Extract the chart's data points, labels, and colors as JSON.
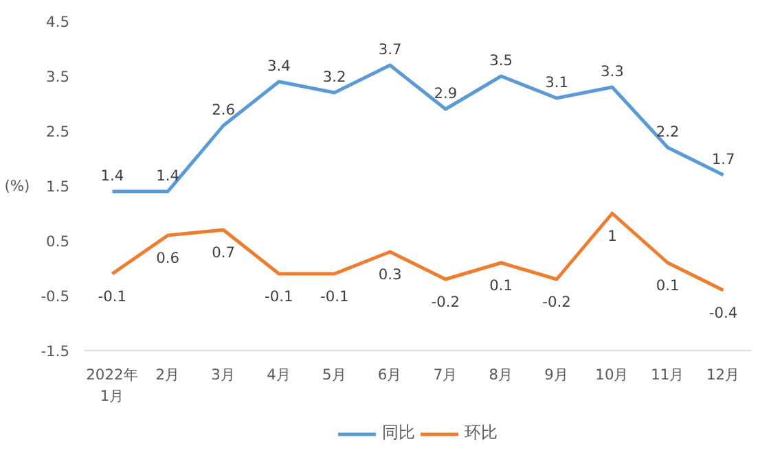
{
  "chart_data": {
    "type": "line",
    "categories": [
      "2022年\n1月",
      "2月",
      "3月",
      "4月",
      "5月",
      "6月",
      "7月",
      "8月",
      "9月",
      "10月",
      "11月",
      "12月"
    ],
    "series": [
      {
        "name": "同比",
        "color": "#5b9bd5",
        "values": [
          1.4,
          1.4,
          2.6,
          3.4,
          3.2,
          3.7,
          2.9,
          3.5,
          3.1,
          3.3,
          2.2,
          1.7
        ]
      },
      {
        "name": "环比",
        "color": "#ed7d31",
        "values": [
          -0.1,
          0.6,
          0.7,
          -0.1,
          -0.1,
          0.3,
          -0.2,
          0.1,
          -0.2,
          1,
          0.1,
          -0.4
        ]
      }
    ],
    "ylabel": "(%)",
    "ylim": [
      -1.5,
      4.5
    ],
    "yticks": [
      -1.5,
      -0.5,
      0.5,
      1.5,
      2.5,
      3.5,
      4.5
    ],
    "data_labels": true,
    "grid": false,
    "legend": "bottom",
    "marker": "none",
    "line_style": "solid"
  }
}
